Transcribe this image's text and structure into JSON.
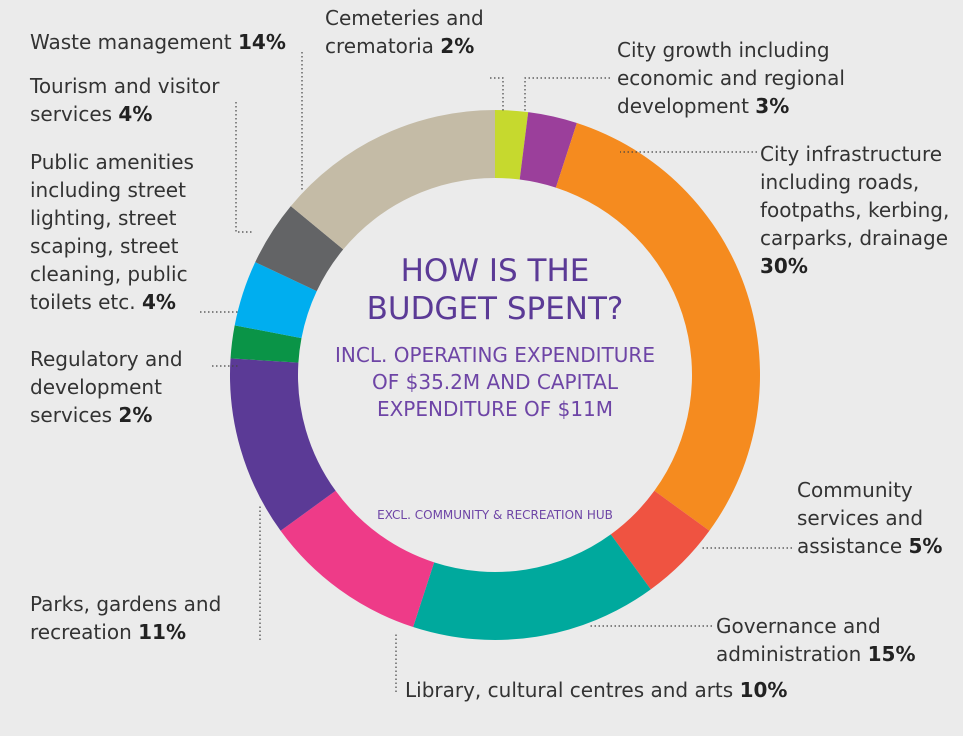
{
  "chart_data": {
    "type": "pie",
    "title": "HOW IS THE BUDGET SPENT?",
    "subtitle": "INCL. OPERATING EXPENDITURE OF $35.2M AND CAPITAL EXPENDITURE OF $11M",
    "note": "EXCL. COMMUNITY & RECREATION HUB",
    "categories": [
      "Cemeteries and crematoria",
      "City growth including economic and regional development",
      "City infrastructure including roads, footpaths, kerbing, carparks, drainage",
      "Community services and assistance",
      "Governance and administration",
      "Library, cultural centres and arts",
      "Parks, gardens and recreation",
      "Regulatory and development services",
      "Public amenities including street lighting, street scaping, street cleaning, public toilets etc.",
      "Tourism and visitor services",
      "Waste management"
    ],
    "values": [
      2,
      3,
      30,
      5,
      15,
      10,
      11,
      2,
      4,
      4,
      14
    ],
    "value_labels": [
      "2%",
      "3%",
      "30%",
      "5%",
      "15%",
      "10%",
      "11%",
      "2%",
      "4%",
      "4%",
      "14%"
    ],
    "colors": [
      "#c6d92e",
      "#9b3f9b",
      "#f58b1f",
      "#ef5341",
      "#00a99d",
      "#ee3b88",
      "#5b3a96",
      "#0a9447",
      "#00aeef",
      "#636466",
      "#c4bba6"
    ]
  }
}
